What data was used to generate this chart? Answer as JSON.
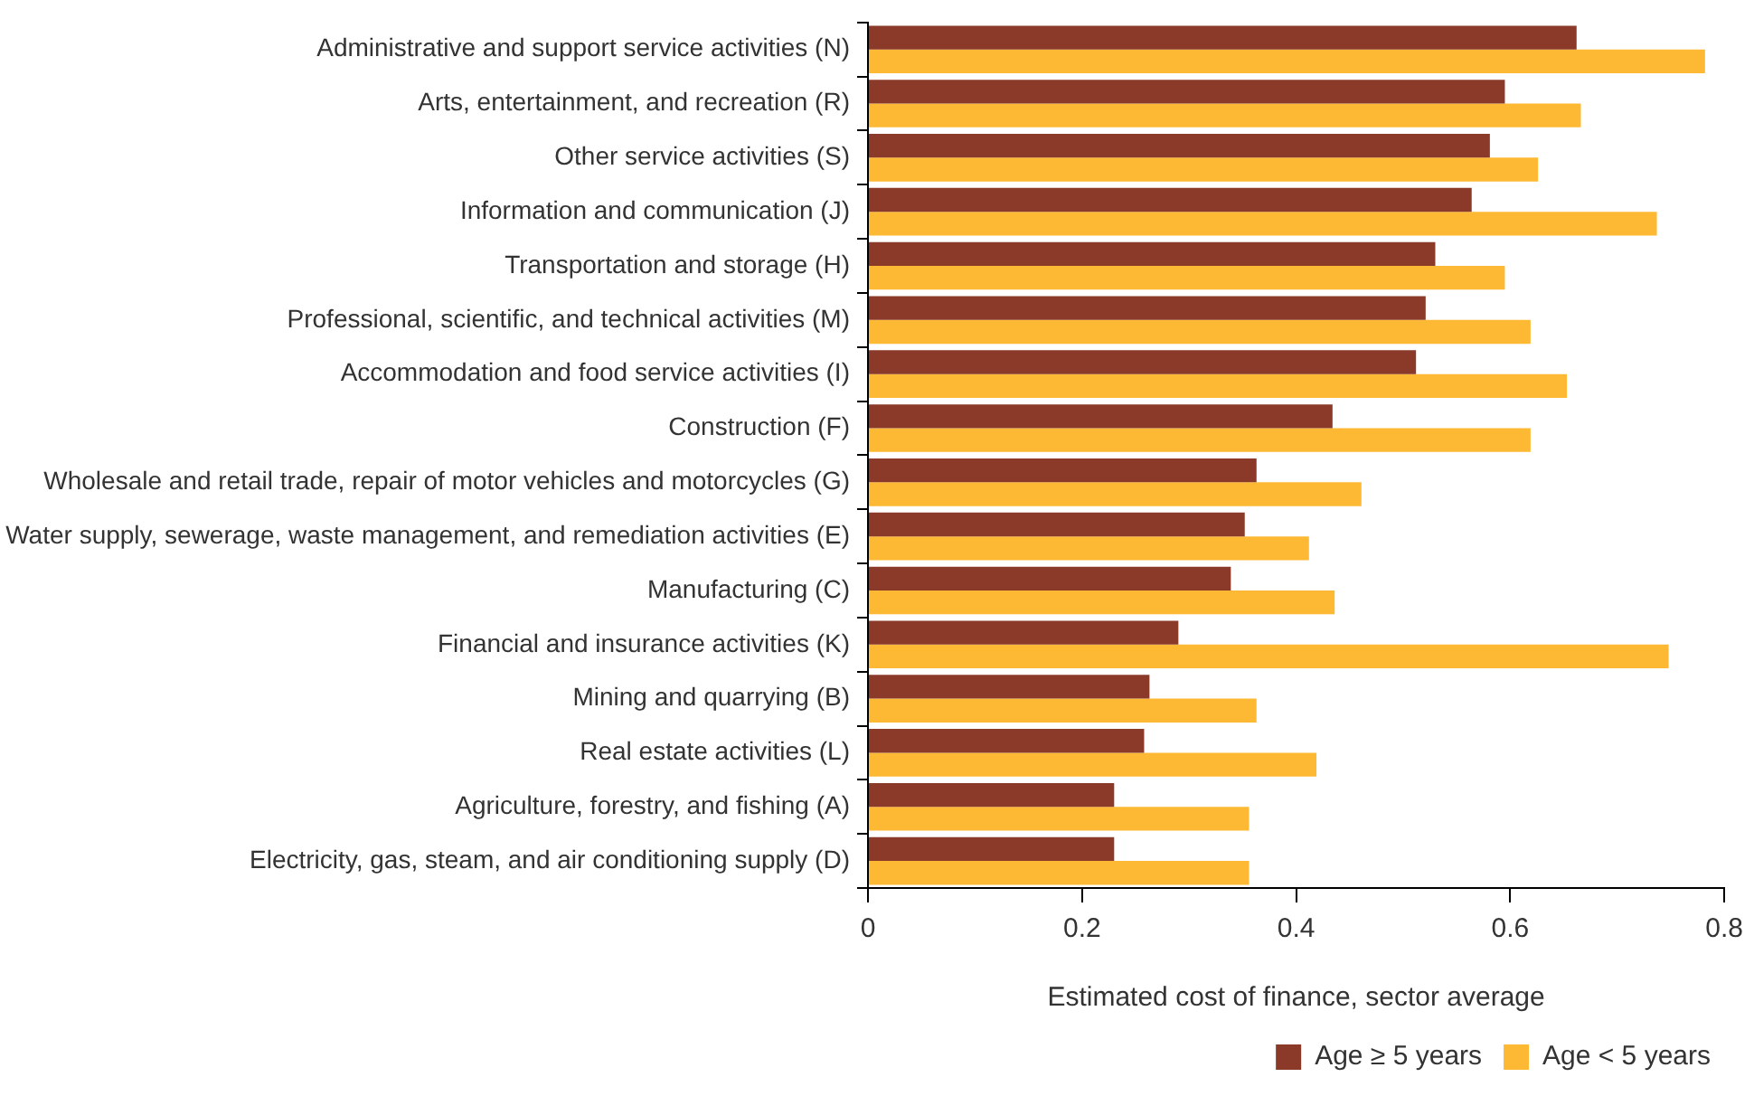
{
  "chart_data": {
    "type": "bar",
    "orientation": "horizontal",
    "xlabel": "Estimated cost of finance, sector average",
    "categories": [
      "Administrative and support service activities (N)",
      "Arts, entertainment, and recreation (R)",
      "Other service activities (S)",
      "Information and communication (J)",
      "Transportation and storage (H)",
      "Professional, scientific, and technical activities (M)",
      "Accommodation and food service activities (I)",
      "Construction (F)",
      "Wholesale and retail trade, repair of motor vehicles and motorcycles (G)",
      "Water supply, sewerage, waste management, and remediation activities (E)",
      "Manufacturing (C)",
      "Financial and insurance activities (K)",
      "Mining and quarrying (B)",
      "Real estate activities (L)",
      "Agriculture, forestry, and fishing (A)",
      "Electricity, gas, steam, and air conditioning supply (D)"
    ],
    "series": [
      {
        "name": "Age ≥ 5 years",
        "color": "#8b3a2a",
        "values": [
          0.662,
          0.595,
          0.581,
          0.564,
          0.53,
          0.521,
          0.512,
          0.434,
          0.363,
          0.352,
          0.339,
          0.29,
          0.263,
          0.258,
          0.23,
          0.23
        ]
      },
      {
        "name": "Age < 5 years",
        "color": "#fdb933",
        "values": [
          0.782,
          0.666,
          0.626,
          0.737,
          0.595,
          0.619,
          0.653,
          0.619,
          0.461,
          0.412,
          0.436,
          0.748,
          0.363,
          0.419,
          0.356,
          0.356
        ]
      }
    ],
    "xlim": [
      0,
      0.8
    ],
    "xticks": [
      0,
      0.2,
      0.4,
      0.6,
      0.8
    ],
    "grid": false,
    "legend": "bottom"
  }
}
